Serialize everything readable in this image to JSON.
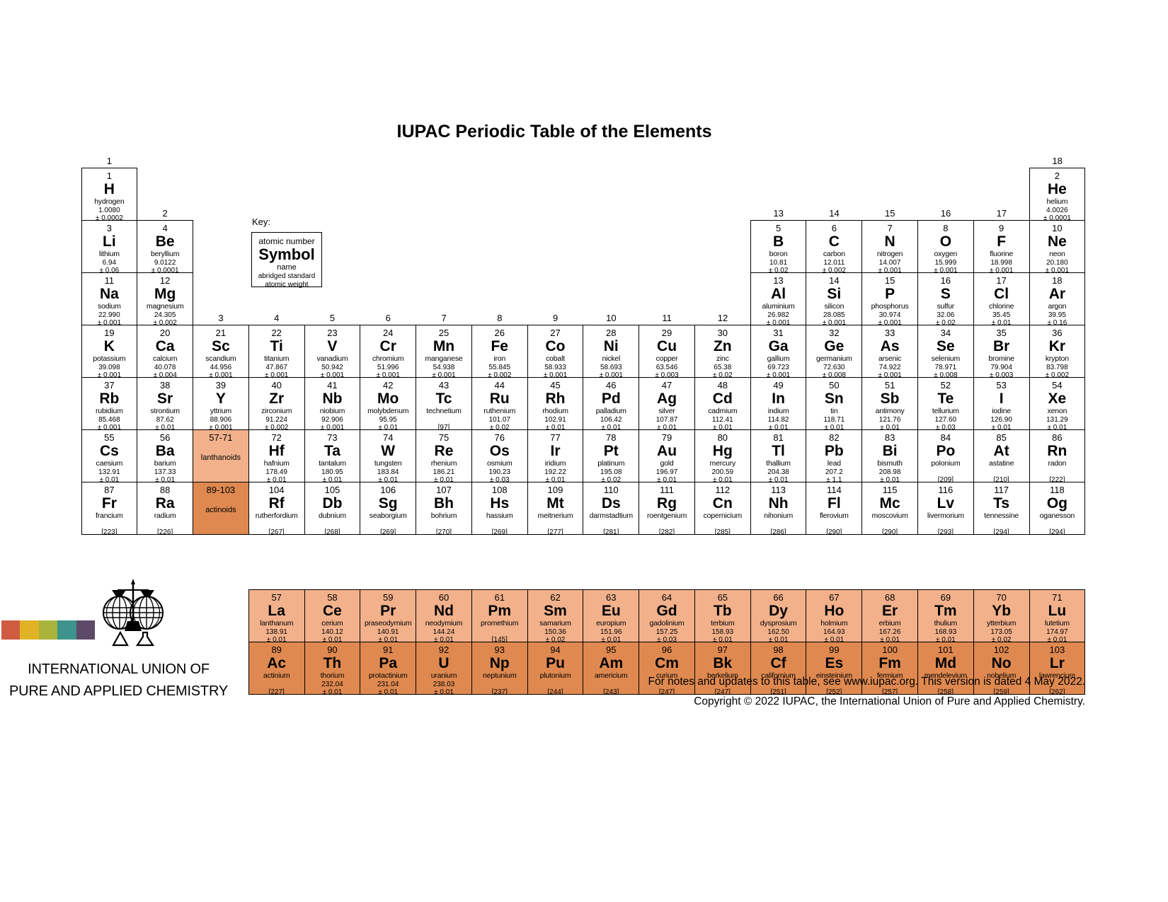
{
  "title": "IUPAC Periodic Table of the Elements",
  "key": {
    "label": "Key:",
    "atomic_number": "atomic number",
    "symbol": "Symbol",
    "name": "name",
    "weight_line1": "abridged standard",
    "weight_line2": "atomic weight"
  },
  "colors": {
    "lanthanoid": "#f2b18b",
    "actinoid": "#df8950"
  },
  "group_labels": [
    {
      "t": "1",
      "g": 1,
      "p": 1
    },
    {
      "t": "2",
      "g": 2,
      "p": 2
    },
    {
      "t": "3",
      "g": 3,
      "p": 4
    },
    {
      "t": "4",
      "g": 4,
      "p": 4
    },
    {
      "t": "5",
      "g": 5,
      "p": 4
    },
    {
      "t": "6",
      "g": 6,
      "p": 4
    },
    {
      "t": "7",
      "g": 7,
      "p": 4
    },
    {
      "t": "8",
      "g": 8,
      "p": 4
    },
    {
      "t": "9",
      "g": 9,
      "p": 4
    },
    {
      "t": "10",
      "g": 10,
      "p": 4
    },
    {
      "t": "11",
      "g": 11,
      "p": 4
    },
    {
      "t": "12",
      "g": 12,
      "p": 4
    },
    {
      "t": "13",
      "g": 13,
      "p": 2
    },
    {
      "t": "14",
      "g": 14,
      "p": 2
    },
    {
      "t": "15",
      "g": 15,
      "p": 2
    },
    {
      "t": "16",
      "g": 16,
      "p": 2
    },
    {
      "t": "17",
      "g": 17,
      "p": 2
    },
    {
      "t": "18",
      "g": 18,
      "p": 1
    }
  ],
  "elements": [
    {
      "z": "1",
      "s": "H",
      "n": "hydrogen",
      "w": "1.0080",
      "u": "± 0.0002",
      "g": 1,
      "p": 1
    },
    {
      "z": "2",
      "s": "He",
      "n": "helium",
      "w": "4.0026",
      "u": "± 0.0001",
      "g": 18,
      "p": 1
    },
    {
      "z": "3",
      "s": "Li",
      "n": "lithium",
      "w": "6.94",
      "u": "± 0.06",
      "g": 1,
      "p": 2
    },
    {
      "z": "4",
      "s": "Be",
      "n": "beryllium",
      "w": "9.0122",
      "u": "± 0.0001",
      "g": 2,
      "p": 2
    },
    {
      "z": "5",
      "s": "B",
      "n": "boron",
      "w": "10.81",
      "u": "± 0.02",
      "g": 13,
      "p": 2
    },
    {
      "z": "6",
      "s": "C",
      "n": "carbon",
      "w": "12.011",
      "u": "± 0.002",
      "g": 14,
      "p": 2
    },
    {
      "z": "7",
      "s": "N",
      "n": "nitrogen",
      "w": "14.007",
      "u": "± 0.001",
      "g": 15,
      "p": 2
    },
    {
      "z": "8",
      "s": "O",
      "n": "oxygen",
      "w": "15.999",
      "u": "± 0.001",
      "g": 16,
      "p": 2
    },
    {
      "z": "9",
      "s": "F",
      "n": "fluorine",
      "w": "18.998",
      "u": "± 0.001",
      "g": 17,
      "p": 2
    },
    {
      "z": "10",
      "s": "Ne",
      "n": "neon",
      "w": "20.180",
      "u": "± 0.001",
      "g": 18,
      "p": 2
    },
    {
      "z": "11",
      "s": "Na",
      "n": "sodium",
      "w": "22.990",
      "u": "± 0.001",
      "g": 1,
      "p": 3
    },
    {
      "z": "12",
      "s": "Mg",
      "n": "magnesium",
      "w": "24.305",
      "u": "± 0.002",
      "g": 2,
      "p": 3
    },
    {
      "z": "13",
      "s": "Al",
      "n": "aluminium",
      "w": "26.982",
      "u": "± 0.001",
      "g": 13,
      "p": 3
    },
    {
      "z": "14",
      "s": "Si",
      "n": "silicon",
      "w": "28.085",
      "u": "± 0.001",
      "g": 14,
      "p": 3
    },
    {
      "z": "15",
      "s": "P",
      "n": "phosphorus",
      "w": "30.974",
      "u": "± 0.001",
      "g": 15,
      "p": 3
    },
    {
      "z": "16",
      "s": "S",
      "n": "sulfur",
      "w": "32.06",
      "u": "± 0.02",
      "g": 16,
      "p": 3
    },
    {
      "z": "17",
      "s": "Cl",
      "n": "chlorine",
      "w": "35.45",
      "u": "± 0.01",
      "g": 17,
      "p": 3
    },
    {
      "z": "18",
      "s": "Ar",
      "n": "argon",
      "w": "39.95",
      "u": "± 0.16",
      "g": 18,
      "p": 3
    },
    {
      "z": "19",
      "s": "K",
      "n": "potassium",
      "w": "39.098",
      "u": "± 0.001",
      "g": 1,
      "p": 4
    },
    {
      "z": "20",
      "s": "Ca",
      "n": "calcium",
      "w": "40.078",
      "u": "± 0.004",
      "g": 2,
      "p": 4
    },
    {
      "z": "21",
      "s": "Sc",
      "n": "scandium",
      "w": "44.956",
      "u": "± 0.001",
      "g": 3,
      "p": 4
    },
    {
      "z": "22",
      "s": "Ti",
      "n": "titanium",
      "w": "47.867",
      "u": "± 0.001",
      "g": 4,
      "p": 4
    },
    {
      "z": "23",
      "s": "V",
      "n": "vanadium",
      "w": "50.942",
      "u": "± 0.001",
      "g": 5,
      "p": 4
    },
    {
      "z": "24",
      "s": "Cr",
      "n": "chromium",
      "w": "51.996",
      "u": "± 0.001",
      "g": 6,
      "p": 4
    },
    {
      "z": "25",
      "s": "Mn",
      "n": "manganese",
      "w": "54.938",
      "u": "± 0.001",
      "g": 7,
      "p": 4
    },
    {
      "z": "26",
      "s": "Fe",
      "n": "iron",
      "w": "55.845",
      "u": "± 0.002",
      "g": 8,
      "p": 4
    },
    {
      "z": "27",
      "s": "Co",
      "n": "cobalt",
      "w": "58.933",
      "u": "± 0.001",
      "g": 9,
      "p": 4
    },
    {
      "z": "28",
      "s": "Ni",
      "n": "nickel",
      "w": "58.693",
      "u": "± 0.001",
      "g": 10,
      "p": 4
    },
    {
      "z": "29",
      "s": "Cu",
      "n": "copper",
      "w": "63.546",
      "u": "± 0.003",
      "g": 11,
      "p": 4
    },
    {
      "z": "30",
      "s": "Zn",
      "n": "zinc",
      "w": "65.38",
      "u": "± 0.02",
      "g": 12,
      "p": 4
    },
    {
      "z": "31",
      "s": "Ga",
      "n": "gallium",
      "w": "69.723",
      "u": "± 0.001",
      "g": 13,
      "p": 4
    },
    {
      "z": "32",
      "s": "Ge",
      "n": "germanium",
      "w": "72.630",
      "u": "± 0.008",
      "g": 14,
      "p": 4
    },
    {
      "z": "33",
      "s": "As",
      "n": "arsenic",
      "w": "74.922",
      "u": "± 0.001",
      "g": 15,
      "p": 4
    },
    {
      "z": "34",
      "s": "Se",
      "n": "selenium",
      "w": "78.971",
      "u": "± 0.008",
      "g": 16,
      "p": 4
    },
    {
      "z": "35",
      "s": "Br",
      "n": "bromine",
      "w": "79.904",
      "u": "± 0.003",
      "g": 17,
      "p": 4
    },
    {
      "z": "36",
      "s": "Kr",
      "n": "krypton",
      "w": "83.798",
      "u": "± 0.002",
      "g": 18,
      "p": 4
    },
    {
      "z": "37",
      "s": "Rb",
      "n": "rubidium",
      "w": "85.468",
      "u": "± 0.001",
      "g": 1,
      "p": 5
    },
    {
      "z": "38",
      "s": "Sr",
      "n": "strontium",
      "w": "87.62",
      "u": "± 0.01",
      "g": 2,
      "p": 5
    },
    {
      "z": "39",
      "s": "Y",
      "n": "yttrium",
      "w": "88.906",
      "u": "± 0.001",
      "g": 3,
      "p": 5
    },
    {
      "z": "40",
      "s": "Zr",
      "n": "zirconium",
      "w": "91.224",
      "u": "± 0.002",
      "g": 4,
      "p": 5
    },
    {
      "z": "41",
      "s": "Nb",
      "n": "niobium",
      "w": "92.906",
      "u": "± 0.001",
      "g": 5,
      "p": 5
    },
    {
      "z": "42",
      "s": "Mo",
      "n": "molybdenum",
      "w": "95.95",
      "u": "± 0.01",
      "g": 6,
      "p": 5
    },
    {
      "z": "43",
      "s": "Tc",
      "n": "technetium",
      "w": "",
      "u": "[97]",
      "g": 7,
      "p": 5
    },
    {
      "z": "44",
      "s": "Ru",
      "n": "ruthenium",
      "w": "101.07",
      "u": "± 0.02",
      "g": 8,
      "p": 5
    },
    {
      "z": "45",
      "s": "Rh",
      "n": "rhodium",
      "w": "102.91",
      "u": "± 0.01",
      "g": 9,
      "p": 5
    },
    {
      "z": "46",
      "s": "Pd",
      "n": "palladium",
      "w": "106.42",
      "u": "± 0.01",
      "g": 10,
      "p": 5
    },
    {
      "z": "47",
      "s": "Ag",
      "n": "silver",
      "w": "107.87",
      "u": "± 0.01",
      "g": 11,
      "p": 5
    },
    {
      "z": "48",
      "s": "Cd",
      "n": "cadmium",
      "w": "112.41",
      "u": "± 0.01",
      "g": 12,
      "p": 5
    },
    {
      "z": "49",
      "s": "In",
      "n": "indium",
      "w": "114.82",
      "u": "± 0.01",
      "g": 13,
      "p": 5
    },
    {
      "z": "50",
      "s": "Sn",
      "n": "tin",
      "w": "118.71",
      "u": "± 0.01",
      "g": 14,
      "p": 5
    },
    {
      "z": "51",
      "s": "Sb",
      "n": "antimony",
      "w": "121.76",
      "u": "± 0.01",
      "g": 15,
      "p": 5
    },
    {
      "z": "52",
      "s": "Te",
      "n": "tellurium",
      "w": "127.60",
      "u": "± 0.03",
      "g": 16,
      "p": 5
    },
    {
      "z": "53",
      "s": "I",
      "n": "iodine",
      "w": "126.90",
      "u": "± 0.01",
      "g": 17,
      "p": 5
    },
    {
      "z": "54",
      "s": "Xe",
      "n": "xenon",
      "w": "131.29",
      "u": "± 0.01",
      "g": 18,
      "p": 5
    },
    {
      "z": "55",
      "s": "Cs",
      "n": "caesium",
      "w": "132.91",
      "u": "± 0.01",
      "g": 1,
      "p": 6
    },
    {
      "z": "56",
      "s": "Ba",
      "n": "barium",
      "w": "137.33",
      "u": "± 0.01",
      "g": 2,
      "p": 6
    },
    {
      "ph": true,
      "z": "57-71",
      "n": "lanthanoids",
      "cls": "lan",
      "g": 3,
      "p": 6
    },
    {
      "z": "72",
      "s": "Hf",
      "n": "hafnium",
      "w": "178.49",
      "u": "± 0.01",
      "g": 4,
      "p": 6
    },
    {
      "z": "73",
      "s": "Ta",
      "n": "tantalum",
      "w": "180.95",
      "u": "± 0.01",
      "g": 5,
      "p": 6
    },
    {
      "z": "74",
      "s": "W",
      "n": "tungsten",
      "w": "183.84",
      "u": "± 0.01",
      "g": 6,
      "p": 6
    },
    {
      "z": "75",
      "s": "Re",
      "n": "rhenium",
      "w": "186.21",
      "u": "± 0.01",
      "g": 7,
      "p": 6
    },
    {
      "z": "76",
      "s": "Os",
      "n": "osmium",
      "w": "190.23",
      "u": "± 0.03",
      "g": 8,
      "p": 6
    },
    {
      "z": "77",
      "s": "Ir",
      "n": "iridium",
      "w": "192.22",
      "u": "± 0.01",
      "g": 9,
      "p": 6
    },
    {
      "z": "78",
      "s": "Pt",
      "n": "platinum",
      "w": "195.08",
      "u": "± 0.02",
      "g": 10,
      "p": 6
    },
    {
      "z": "79",
      "s": "Au",
      "n": "gold",
      "w": "196.97",
      "u": "± 0.01",
      "g": 11,
      "p": 6
    },
    {
      "z": "80",
      "s": "Hg",
      "n": "mercury",
      "w": "200.59",
      "u": "± 0.01",
      "g": 12,
      "p": 6
    },
    {
      "z": "81",
      "s": "Tl",
      "n": "thallium",
      "w": "204.38",
      "u": "± 0.01",
      "g": 13,
      "p": 6
    },
    {
      "z": "82",
      "s": "Pb",
      "n": "lead",
      "w": "207.2",
      "u": "± 1.1",
      "g": 14,
      "p": 6
    },
    {
      "z": "83",
      "s": "Bi",
      "n": "bismuth",
      "w": "208.98",
      "u": "± 0.01",
      "g": 15,
      "p": 6
    },
    {
      "z": "84",
      "s": "Po",
      "n": "polonium",
      "w": "",
      "u": "[209]",
      "g": 16,
      "p": 6
    },
    {
      "z": "85",
      "s": "At",
      "n": "astatine",
      "w": "",
      "u": "[210]",
      "g": 17,
      "p": 6
    },
    {
      "z": "86",
      "s": "Rn",
      "n": "radon",
      "w": "",
      "u": "[222]",
      "g": 18,
      "p": 6
    },
    {
      "z": "87",
      "s": "Fr",
      "n": "francium",
      "w": "",
      "u": "[223]",
      "g": 1,
      "p": 7
    },
    {
      "z": "88",
      "s": "Ra",
      "n": "radium",
      "w": "",
      "u": "[226]",
      "g": 2,
      "p": 7
    },
    {
      "ph": true,
      "z": "89-103",
      "n": "actinoids",
      "cls": "act",
      "g": 3,
      "p": 7
    },
    {
      "z": "104",
      "s": "Rf",
      "n": "rutherfordium",
      "w": "",
      "u": "[267]",
      "g": 4,
      "p": 7
    },
    {
      "z": "105",
      "s": "Db",
      "n": "dubnium",
      "w": "",
      "u": "[268]",
      "g": 5,
      "p": 7
    },
    {
      "z": "106",
      "s": "Sg",
      "n": "seaborgium",
      "w": "",
      "u": "[269]",
      "g": 6,
      "p": 7
    },
    {
      "z": "107",
      "s": "Bh",
      "n": "bohrium",
      "w": "",
      "u": "[270]",
      "g": 7,
      "p": 7
    },
    {
      "z": "108",
      "s": "Hs",
      "n": "hassium",
      "w": "",
      "u": "[269]",
      "g": 8,
      "p": 7
    },
    {
      "z": "109",
      "s": "Mt",
      "n": "meitnerium",
      "w": "",
      "u": "[277]",
      "g": 9,
      "p": 7
    },
    {
      "z": "110",
      "s": "Ds",
      "n": "darmstadtium",
      "w": "",
      "u": "[281]",
      "g": 10,
      "p": 7
    },
    {
      "z": "111",
      "s": "Rg",
      "n": "roentgenium",
      "w": "",
      "u": "[282]",
      "g": 11,
      "p": 7
    },
    {
      "z": "112",
      "s": "Cn",
      "n": "copernicium",
      "w": "",
      "u": "[285]",
      "g": 12,
      "p": 7
    },
    {
      "z": "113",
      "s": "Nh",
      "n": "nihonium",
      "w": "",
      "u": "[286]",
      "g": 13,
      "p": 7
    },
    {
      "z": "114",
      "s": "Fl",
      "n": "flerovium",
      "w": "",
      "u": "[290]",
      "g": 14,
      "p": 7
    },
    {
      "z": "115",
      "s": "Mc",
      "n": "moscovium",
      "w": "",
      "u": "[290]",
      "g": 15,
      "p": 7
    },
    {
      "z": "116",
      "s": "Lv",
      "n": "livermorium",
      "w": "",
      "u": "[293]",
      "g": 16,
      "p": 7
    },
    {
      "z": "117",
      "s": "Ts",
      "n": "tennessine",
      "w": "",
      "u": "[294]",
      "g": 17,
      "p": 7
    },
    {
      "z": "118",
      "s": "Og",
      "n": "oganesson",
      "w": "",
      "u": "[294]",
      "g": 18,
      "p": 7
    }
  ],
  "lanthanoids": [
    {
      "z": "57",
      "s": "La",
      "n": "lanthanum",
      "w": "138.91",
      "u": "± 0.01"
    },
    {
      "z": "58",
      "s": "Ce",
      "n": "cerium",
      "w": "140.12",
      "u": "± 0.01"
    },
    {
      "z": "59",
      "s": "Pr",
      "n": "praseodymium",
      "w": "140.91",
      "u": "± 0.01"
    },
    {
      "z": "60",
      "s": "Nd",
      "n": "neodymium",
      "w": "144.24",
      "u": "± 0.01"
    },
    {
      "z": "61",
      "s": "Pm",
      "n": "promethium",
      "w": "",
      "u": "[145]"
    },
    {
      "z": "62",
      "s": "Sm",
      "n": "samarium",
      "w": "150.36",
      "u": "± 0.02"
    },
    {
      "z": "63",
      "s": "Eu",
      "n": "europium",
      "w": "151.96",
      "u": "± 0.01"
    },
    {
      "z": "64",
      "s": "Gd",
      "n": "gadolinium",
      "w": "157.25",
      "u": "± 0.03"
    },
    {
      "z": "65",
      "s": "Tb",
      "n": "terbium",
      "w": "158.93",
      "u": "± 0.01"
    },
    {
      "z": "66",
      "s": "Dy",
      "n": "dysprosium",
      "w": "162.50",
      "u": "± 0.01"
    },
    {
      "z": "67",
      "s": "Ho",
      "n": "holmium",
      "w": "164.93",
      "u": "± 0.01"
    },
    {
      "z": "68",
      "s": "Er",
      "n": "erbium",
      "w": "167.26",
      "u": "± 0.01"
    },
    {
      "z": "69",
      "s": "Tm",
      "n": "thulium",
      "w": "168.93",
      "u": "± 0.01"
    },
    {
      "z": "70",
      "s": "Yb",
      "n": "ytterbium",
      "w": "173.05",
      "u": "± 0.02"
    },
    {
      "z": "71",
      "s": "Lu",
      "n": "lutetium",
      "w": "174.97",
      "u": "± 0.01"
    }
  ],
  "actinoids": [
    {
      "z": "89",
      "s": "Ac",
      "n": "actinium",
      "w": "",
      "u": "[227]"
    },
    {
      "z": "90",
      "s": "Th",
      "n": "thorium",
      "w": "232.04",
      "u": "± 0.01"
    },
    {
      "z": "91",
      "s": "Pa",
      "n": "protactinium",
      "w": "231.04",
      "u": "± 0.01"
    },
    {
      "z": "92",
      "s": "U",
      "n": "uranium",
      "w": "238.03",
      "u": "± 0.01"
    },
    {
      "z": "93",
      "s": "Np",
      "n": "neptunium",
      "w": "",
      "u": "[237]"
    },
    {
      "z": "94",
      "s": "Pu",
      "n": "plutonium",
      "w": "",
      "u": "[244]"
    },
    {
      "z": "95",
      "s": "Am",
      "n": "americium",
      "w": "",
      "u": "[243]"
    },
    {
      "z": "96",
      "s": "Cm",
      "n": "curium",
      "w": "",
      "u": "[247]"
    },
    {
      "z": "97",
      "s": "Bk",
      "n": "berkelium",
      "w": "",
      "u": "[247]"
    },
    {
      "z": "98",
      "s": "Cf",
      "n": "californium",
      "w": "",
      "u": "[251]"
    },
    {
      "z": "99",
      "s": "Es",
      "n": "einsteinium",
      "w": "",
      "u": "[252]"
    },
    {
      "z": "100",
      "s": "Fm",
      "n": "fermium",
      "w": "",
      "u": "[257]"
    },
    {
      "z": "101",
      "s": "Md",
      "n": "mendelevium",
      "w": "",
      "u": "[258]"
    },
    {
      "z": "102",
      "s": "No",
      "n": "nobelium",
      "w": "",
      "u": "[259]"
    },
    {
      "z": "103",
      "s": "Lr",
      "n": "lawrencium",
      "w": "",
      "u": "[262]"
    }
  ],
  "logo": {
    "org_line1": "INTERNATIONAL UNION OF",
    "org_line2": "PURE AND APPLIED CHEMISTRY",
    "bar_colors": [
      "#cf5b41",
      "#e0b226",
      "#a7b33a",
      "#3e948c",
      "#5d4a68"
    ]
  },
  "footer": {
    "line1": "For notes and updates to this table, see www.iupac.org. This version is dated 4 May 2022.",
    "line2": "Copyright © 2022 IUPAC, the International Union of Pure and Applied Chemistry."
  }
}
